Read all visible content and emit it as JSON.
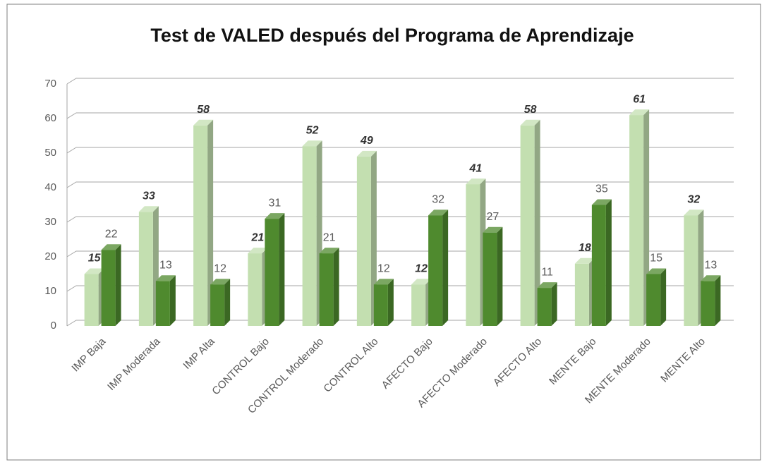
{
  "chart_data": {
    "type": "bar3d",
    "title": "Test de VALED después del Programa de Aprendizaje",
    "categories": [
      "IMP Baja",
      "IMP Moderada",
      "IMP Alta",
      "CONTROL Bajo",
      "CONTROL Moderado",
      "CONTROL Alto",
      "AFECTO Bajo",
      "AFECTO Moderado",
      "AFECTO Alto",
      "MENTE Bajo",
      "MENTE Moderado",
      "MENTE Alto"
    ],
    "series": [
      {
        "color": "#c3dfb0",
        "values": [
          15,
          33,
          58,
          21,
          52,
          49,
          12,
          41,
          58,
          18,
          61,
          32
        ]
      },
      {
        "color": "#4f8a2e",
        "values": [
          22,
          13,
          12,
          31,
          21,
          12,
          32,
          27,
          11,
          35,
          15,
          13
        ]
      }
    ],
    "ylim": [
      0,
      70
    ],
    "yticks": [
      0,
      10,
      20,
      30,
      40,
      50,
      60,
      70
    ],
    "grid": true
  }
}
